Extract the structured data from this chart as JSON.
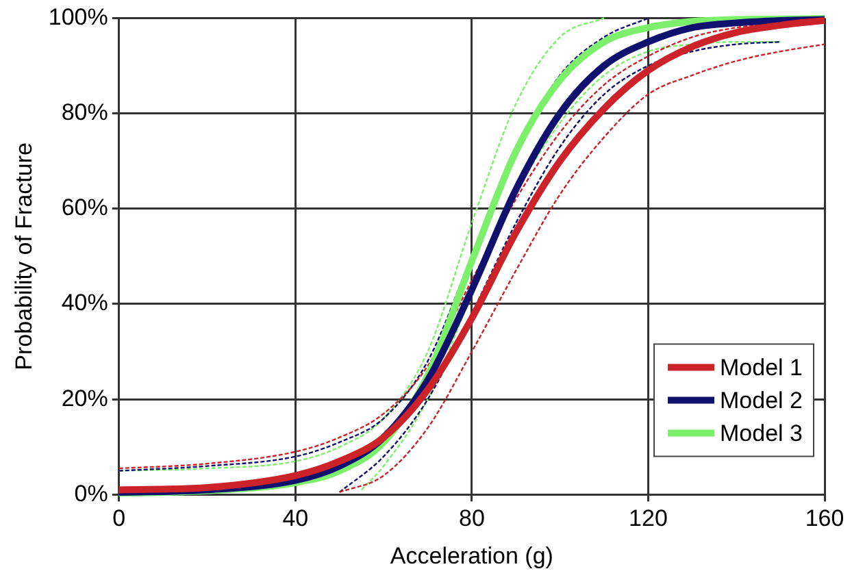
{
  "chart_data": {
    "type": "line",
    "xlabel": "Acceleration (g)",
    "ylabel": "Probability of Fracture",
    "xlim": [
      0,
      160
    ],
    "xticks": [
      0,
      40,
      80,
      120,
      160
    ],
    "ylim": [
      0,
      100
    ],
    "yticks": [
      {
        "value": 0,
        "label": "0%"
      },
      {
        "value": 20,
        "label": "20%"
      },
      {
        "value": 40,
        "label": "40%"
      },
      {
        "value": 60,
        "label": "60%"
      },
      {
        "value": 80,
        "label": "80%"
      },
      {
        "value": 100,
        "label": "100%"
      }
    ],
    "grid": true,
    "legend": "bottom right",
    "marker": "none",
    "line_style": "solid",
    "series": [
      {
        "name": "Model 1",
        "color": "#cc2229",
        "x": [
          0,
          20,
          40,
          50,
          60,
          70,
          80,
          90,
          100,
          110,
          120,
          130,
          140,
          150,
          160
        ],
        "values": [
          1,
          1.5,
          4,
          7,
          12,
          22,
          37,
          55,
          70,
          81,
          89,
          94,
          97,
          98.5,
          99.5
        ]
      },
      {
        "name": "Model 2",
        "color": "#10106e",
        "x": [
          0,
          20,
          40,
          50,
          60,
          70,
          80,
          90,
          100,
          110,
          120,
          130,
          140,
          150,
          160
        ],
        "values": [
          0.5,
          1,
          3,
          6,
          12,
          24,
          43,
          64,
          80,
          90,
          95,
          98,
          99,
          99.5,
          99.7
        ]
      },
      {
        "name": "Model 3",
        "color": "#7cf06a",
        "x": [
          0,
          20,
          40,
          50,
          60,
          70,
          80,
          90,
          100,
          110,
          120,
          130,
          140,
          150,
          160
        ],
        "values": [
          0.3,
          0.8,
          2.5,
          5,
          11,
          25,
          49,
          72,
          87,
          95,
          98,
          99.3,
          99.7,
          99.8,
          99.9
        ]
      },
      {
        "color": "#cc2229",
        "line_style": "dashed",
        "x": [
          50,
          60,
          70,
          80,
          90,
          100,
          110,
          120,
          130,
          140,
          150,
          160
        ],
        "values": [
          0.5,
          4,
          14,
          30,
          47,
          63,
          75,
          84,
          88,
          91,
          93,
          94.5
        ]
      },
      {
        "color": "#cc2229",
        "line_style": "dashed",
        "x": [
          0,
          20,
          40,
          50,
          60,
          70,
          80,
          90,
          100,
          110,
          120,
          130,
          140,
          150,
          160
        ],
        "values": [
          5.5,
          6.5,
          9,
          12,
          17,
          27,
          45,
          62,
          76,
          86,
          92,
          96,
          98,
          99,
          99.5
        ]
      },
      {
        "color": "#10106e",
        "line_style": "dashed",
        "x": [
          50,
          60,
          70,
          80,
          90,
          100,
          110,
          120,
          130,
          140,
          150
        ],
        "values": [
          0.5,
          8,
          20,
          38,
          57,
          73,
          84,
          90,
          93,
          94.5,
          95
        ]
      },
      {
        "color": "#10106e",
        "line_style": "dashed",
        "x": [
          0,
          20,
          40,
          50,
          60,
          70,
          80,
          90,
          100,
          110,
          120
        ],
        "values": [
          5,
          6,
          8,
          11,
          16,
          28,
          50,
          72,
          88,
          96,
          100
        ]
      },
      {
        "color": "#7cf06a",
        "line_style": "dashed",
        "x": [
          55,
          60,
          70,
          80,
          90,
          100,
          110,
          120,
          130,
          140,
          150
        ],
        "values": [
          1,
          6,
          20,
          42,
          63,
          78,
          88,
          93,
          94.5,
          95,
          95
        ]
      },
      {
        "color": "#7cf06a",
        "line_style": "dashed",
        "x": [
          0,
          20,
          40,
          50,
          60,
          70,
          80,
          90,
          100,
          110
        ],
        "values": [
          5,
          5.5,
          7,
          10,
          16,
          30,
          57,
          82,
          96,
          100
        ]
      }
    ]
  }
}
